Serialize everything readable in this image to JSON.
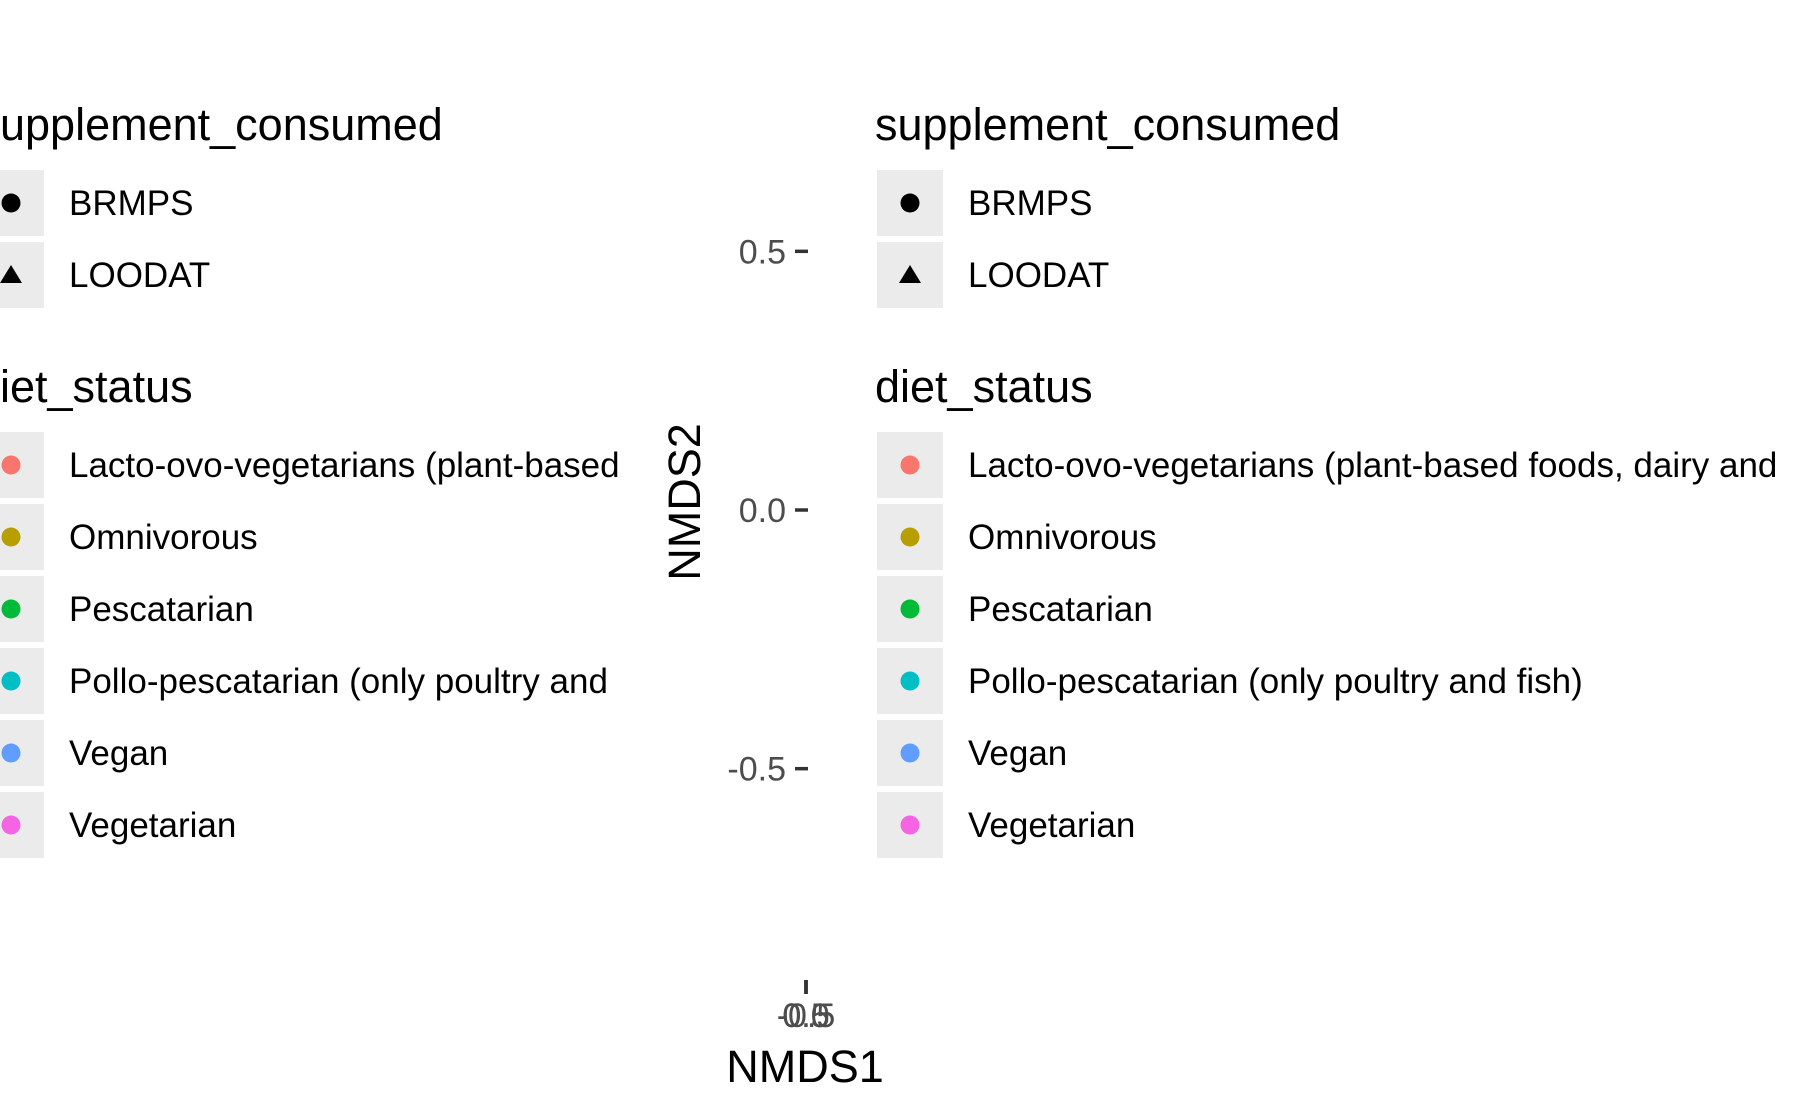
{
  "chart_data": {
    "type": "scatter",
    "xlabel": "NMDS1",
    "ylabel": "NMDS2",
    "x_tick_labels": [
      "-0.5",
      "0.0",
      "0.5"
    ],
    "y_tick_labels": [
      "0.5",
      "0.0",
      "-0.5"
    ],
    "y_ticks": [
      0.5,
      0.0,
      -0.5
    ],
    "ylim": [
      -0.98,
      0.98
    ],
    "x": [],
    "y": [],
    "grid": false,
    "legends": [
      {
        "title": "supplement_consumed",
        "title_clipped": "upplement_consumed",
        "entries": [
          {
            "label": "BRMPS",
            "label_clipped": "BRMPS",
            "shape": "circle",
            "color": "#000000"
          },
          {
            "label": "LOODAT",
            "label_clipped": "LOODAT",
            "shape": "triangle",
            "color": "#000000"
          }
        ]
      },
      {
        "title": "diet_status",
        "title_clipped": "iet_status",
        "entries": [
          {
            "label": "Lacto-ovo-vegetarians (plant-based foods, dairy and",
            "label_clipped": "Lacto-ovo-vegetarians (plant-based",
            "shape": "circle",
            "color": "#F8766D"
          },
          {
            "label": "Omnivorous",
            "label_clipped": "Omnivorous",
            "shape": "circle",
            "color": "#B79F00"
          },
          {
            "label": "Pescatarian",
            "label_clipped": "Pescatarian",
            "shape": "circle",
            "color": "#00BA38"
          },
          {
            "label": "Pollo-pescatarian (only poultry and fish)",
            "label_clipped": "Pollo-pescatarian (only poultry and",
            "shape": "circle",
            "color": "#00BFC4"
          },
          {
            "label": "Vegan",
            "label_clipped": "Vegan",
            "shape": "circle",
            "color": "#619CFF"
          },
          {
            "label": "Vegetarian",
            "label_clipped": "Vegetarian",
            "shape": "circle",
            "color": "#F564E3"
          }
        ]
      }
    ]
  }
}
